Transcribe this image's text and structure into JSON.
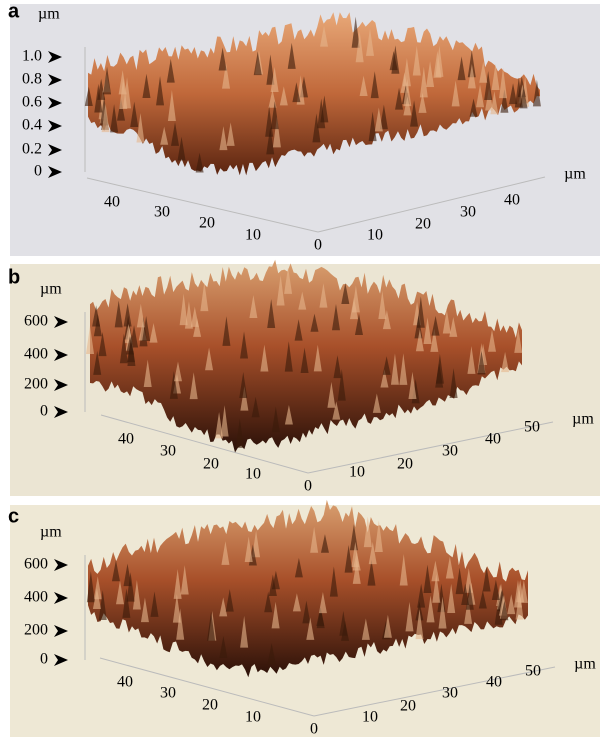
{
  "panels": [
    {
      "label": "a",
      "z_unit": "µm",
      "z_ticks": [
        "1.0",
        "0.8",
        "0.6",
        "0.4",
        "0.2",
        "0"
      ],
      "left_ticks": [
        "40",
        "30",
        "20",
        "10"
      ],
      "origin": "0",
      "right_ticks": [
        "10",
        "20",
        "30",
        "40"
      ],
      "xy_unit": "µm"
    },
    {
      "label": "b",
      "z_unit": "µm",
      "z_ticks": [
        "600",
        "400",
        "200",
        "0"
      ],
      "left_ticks": [
        "40",
        "30",
        "20",
        "10"
      ],
      "origin": "0",
      "right_ticks": [
        "10",
        "20",
        "30",
        "40",
        "50"
      ],
      "xy_unit": "µm"
    },
    {
      "label": "c",
      "z_unit": "µm",
      "z_ticks": [
        "600",
        "400",
        "200",
        "0"
      ],
      "left_ticks": [
        "40",
        "30",
        "20",
        "10"
      ],
      "origin": "0",
      "right_ticks": [
        "10",
        "20",
        "30",
        "40",
        "50"
      ],
      "xy_unit": "µm"
    }
  ]
}
